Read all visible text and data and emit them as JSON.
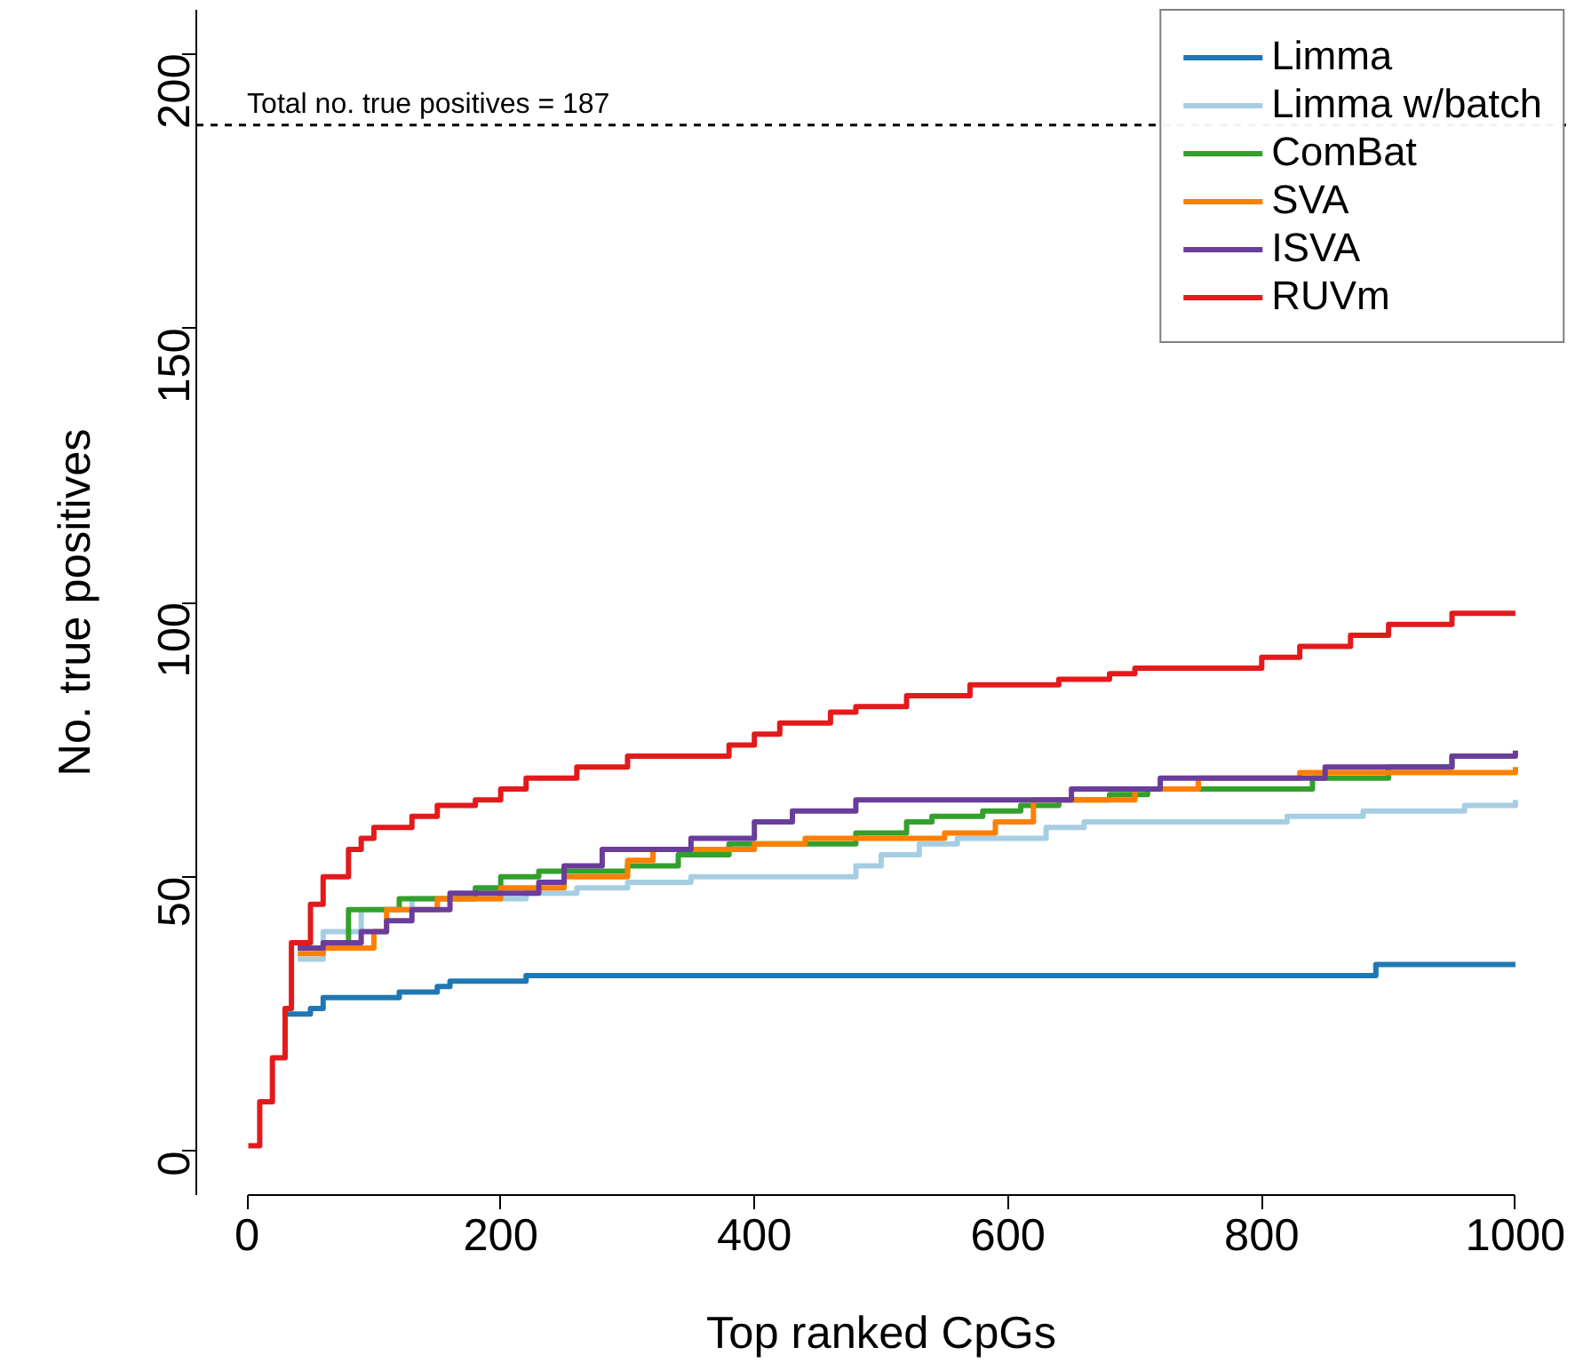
{
  "chart_data": {
    "type": "step",
    "xlabel": "Top ranked CpGs",
    "ylabel": "No. true positives",
    "xlim": [
      -40,
      1040
    ],
    "ylim": [
      -8,
      208
    ],
    "xticks": [
      0,
      200,
      400,
      600,
      800,
      1000
    ],
    "yticks": [
      0,
      50,
      100,
      150,
      200
    ],
    "grid": false,
    "legend": "top right",
    "line_style": "solid",
    "marker": "none",
    "ref_lines": [
      {
        "axis": "y",
        "value": 187,
        "label": "Total no. true positives = 187",
        "color": "#000000",
        "line_style": "dashed"
      }
    ],
    "series": [
      {
        "name": "Limma",
        "color": "#1f78b4",
        "x": [
          30,
          50,
          60,
          120,
          150,
          160,
          220,
          880,
          890,
          1000
        ],
        "values": [
          25,
          26,
          28,
          29,
          30,
          31,
          32,
          32,
          34,
          34
        ]
      },
      {
        "name": "Limma w/batch",
        "color": "#a6cee3",
        "x": [
          40,
          60,
          90,
          130,
          220,
          260,
          300,
          350,
          480,
          500,
          530,
          560,
          630,
          660,
          820,
          880,
          960,
          1000
        ],
        "values": [
          35,
          40,
          44,
          46,
          47,
          48,
          49,
          50,
          52,
          54,
          56,
          57,
          59,
          60,
          61,
          62,
          63,
          64
        ]
      },
      {
        "name": "ComBat",
        "color": "#33a02c",
        "x": [
          40,
          80,
          120,
          180,
          200,
          230,
          300,
          340,
          380,
          480,
          520,
          540,
          580,
          610,
          640,
          680,
          710,
          840,
          900,
          950,
          1000
        ],
        "values": [
          37,
          44,
          46,
          48,
          50,
          51,
          52,
          54,
          56,
          58,
          60,
          61,
          62,
          63,
          64,
          65,
          66,
          68,
          70,
          72,
          72
        ]
      },
      {
        "name": "SVA",
        "color": "#ff7f00",
        "x": [
          40,
          60,
          100,
          110,
          150,
          200,
          250,
          300,
          320,
          400,
          440,
          550,
          590,
          620,
          700,
          750,
          830,
          1000
        ],
        "values": [
          36,
          37,
          40,
          44,
          46,
          48,
          50,
          53,
          55,
          56,
          57,
          58,
          60,
          64,
          66,
          68,
          69,
          70
        ]
      },
      {
        "name": "ISVA",
        "color": "#6a3d9a",
        "x": [
          40,
          60,
          90,
          110,
          130,
          160,
          230,
          250,
          280,
          350,
          400,
          430,
          480,
          640,
          650,
          720,
          850,
          950,
          1000
        ],
        "values": [
          37,
          38,
          40,
          42,
          44,
          47,
          49,
          52,
          55,
          57,
          60,
          62,
          64,
          64,
          66,
          68,
          70,
          72,
          73
        ]
      },
      {
        "name": "RUVm",
        "color": "#e31a1c",
        "x": [
          1,
          10,
          20,
          30,
          35,
          50,
          60,
          80,
          90,
          100,
          130,
          150,
          180,
          200,
          220,
          260,
          300,
          380,
          400,
          420,
          460,
          480,
          520,
          570,
          640,
          680,
          700,
          800,
          830,
          870,
          900,
          950,
          1000
        ],
        "values": [
          1,
          9,
          17,
          26,
          38,
          45,
          50,
          55,
          57,
          59,
          61,
          63,
          64,
          66,
          68,
          70,
          72,
          74,
          76,
          78,
          80,
          81,
          83,
          85,
          86,
          87,
          88,
          90,
          92,
          94,
          96,
          98,
          98
        ]
      }
    ]
  }
}
